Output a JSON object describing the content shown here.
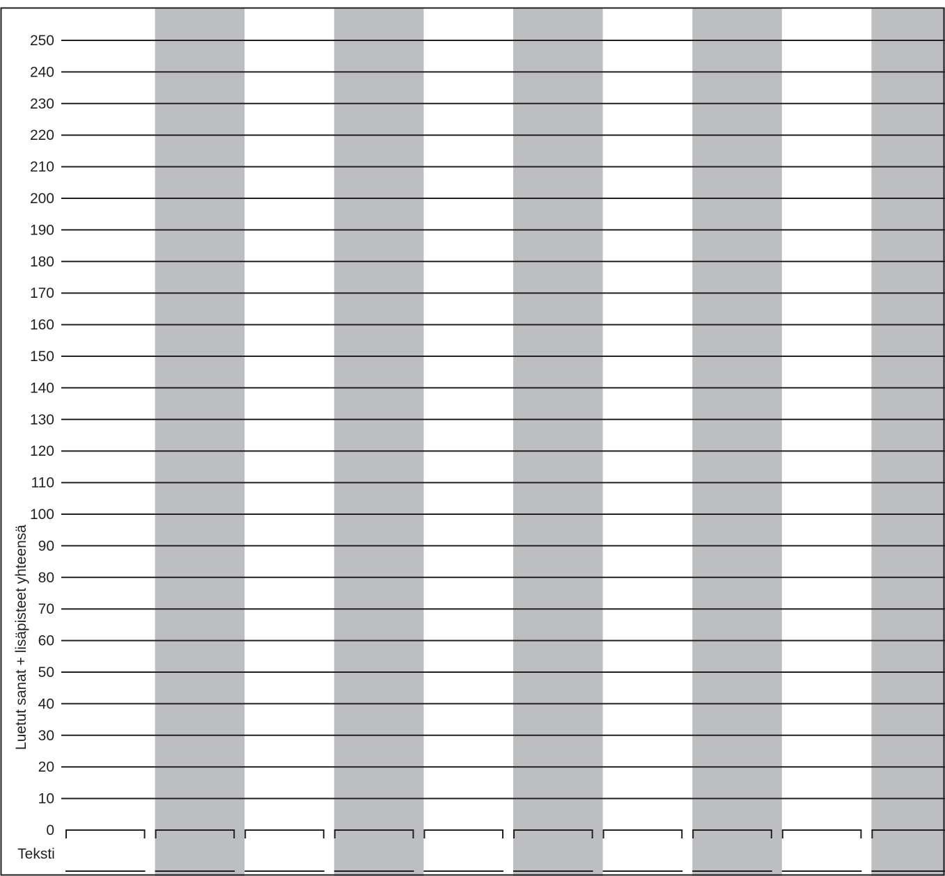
{
  "chart_data": {
    "type": "bar",
    "title": "",
    "xlabel": "Teksti",
    "ylabel": "Luetut sanat + lisäpisteet yhteensä",
    "ylim": [
      0,
      250
    ],
    "y_ticks": [
      0,
      10,
      20,
      30,
      40,
      50,
      60,
      70,
      80,
      90,
      100,
      110,
      120,
      130,
      140,
      150,
      160,
      170,
      180,
      190,
      200,
      210,
      220,
      230,
      240,
      250
    ],
    "categories": [
      "",
      "",
      "",
      "",
      "",
      "",
      "",
      "",
      "",
      ""
    ],
    "values": [
      null,
      null,
      null,
      null,
      null,
      null,
      null,
      null,
      null,
      null
    ],
    "grid": true,
    "colors": {
      "line": "#231f20",
      "shaded_column": "#bcbec0",
      "background": "#ffffff"
    }
  }
}
